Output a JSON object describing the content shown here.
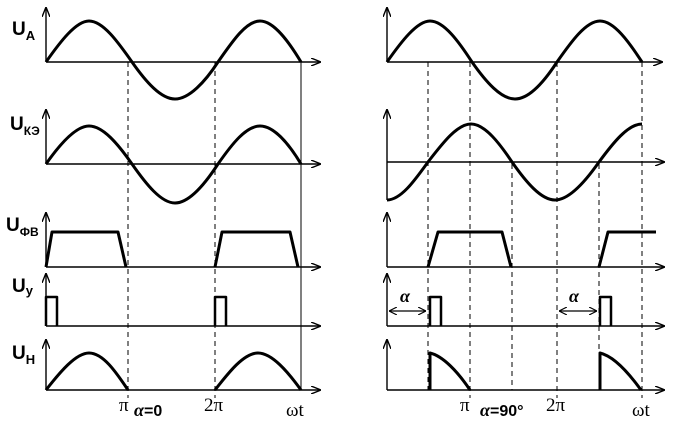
{
  "diagram": {
    "left_panel": {
      "labels": {
        "ua": "U",
        "ua_sub": "A",
        "uke": "U",
        "uke_sub": "КЭ",
        "ufv": "U",
        "ufv_sub": "ФВ",
        "uy": "U",
        "uy_sub": "у",
        "un": "U",
        "un_sub": "Н"
      },
      "pi": "π",
      "alpha_text": "=0",
      "two_pi": "2π",
      "wt": "ωt"
    },
    "right_panel": {
      "alpha_left": "",
      "alpha_right": "",
      "pi": "π",
      "alpha_text": "=90°",
      "two_pi": "2π",
      "wt": "ωt"
    },
    "alpha_symbol": "α"
  }
}
